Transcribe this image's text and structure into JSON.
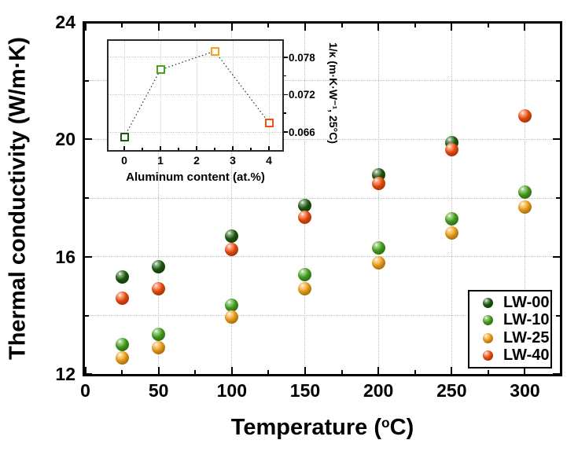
{
  "figure": {
    "y_axis_title": "Thermal conductivity (W/m·K)",
    "x_axis_title": {
      "prefix": "Temperature (",
      "superscript": "o",
      "suffix": "C)"
    }
  },
  "legend": {
    "position": "lower right",
    "items": [
      {
        "label": "LW-00",
        "color": "#1c5b0f"
      },
      {
        "label": "LW-10",
        "color": "#48a41f"
      },
      {
        "label": "LW-25",
        "color": "#f5a31b"
      },
      {
        "label": "LW-40",
        "color": "#f3500e"
      }
    ]
  },
  "chart_data": [
    {
      "type": "scatter",
      "title": "",
      "xlabel": "Temperature (°C)",
      "ylabel": "Thermal conductivity (W/m·K)",
      "xlim": [
        0,
        325
      ],
      "ylim": [
        12,
        24
      ],
      "xticks": [
        0,
        50,
        100,
        150,
        200,
        250,
        300
      ],
      "xticks_minor": [
        25,
        75,
        125,
        175,
        225,
        275,
        325
      ],
      "yticks": [
        12,
        16,
        20,
        24
      ],
      "yticks_minor": [
        14,
        18,
        22
      ],
      "xgrid": [
        50,
        100,
        150,
        200,
        250,
        300
      ],
      "ygrid": [
        14,
        16,
        18,
        20,
        22
      ],
      "grid": true,
      "marker": "glossy-sphere",
      "series": [
        {
          "name": "LW-00",
          "color": "#1c5b0f",
          "x": [
            25,
            50,
            100,
            150,
            200,
            250
          ],
          "y": [
            15.3,
            15.65,
            16.7,
            17.75,
            18.8,
            19.9
          ]
        },
        {
          "name": "LW-10",
          "color": "#48a41f",
          "x": [
            25,
            50,
            100,
            150,
            200,
            250,
            300
          ],
          "y": [
            13.0,
            13.35,
            14.35,
            15.4,
            16.3,
            17.3,
            18.2
          ]
        },
        {
          "name": "LW-25",
          "color": "#f5a31b",
          "x": [
            25,
            50,
            100,
            150,
            200,
            250,
            300
          ],
          "y": [
            12.55,
            12.9,
            13.95,
            14.9,
            15.8,
            16.8,
            17.7
          ]
        },
        {
          "name": "LW-40",
          "color": "#f3500e",
          "x": [
            25,
            50,
            100,
            150,
            200,
            250,
            300
          ],
          "y": [
            14.6,
            14.9,
            16.25,
            17.35,
            18.5,
            19.65,
            20.8
          ]
        }
      ]
    },
    {
      "type": "line",
      "role": "inset",
      "xlabel": "Aluminum content (at.%)",
      "ylabel": "1/κ (m·K·W⁻¹, 25°C)",
      "xlim": [
        -0.5,
        4.4
      ],
      "ylim": [
        0.063,
        0.081
      ],
      "xticks": [
        0,
        1,
        2,
        3,
        4
      ],
      "xticks_minor": [
        0.5,
        1.5,
        2.5,
        3.5
      ],
      "yticks": [
        0.066,
        0.072,
        0.078
      ],
      "yticks_minor": [
        0.069,
        0.075
      ],
      "line_style": "dotted",
      "marker": "open-square",
      "points": [
        {
          "x": 0,
          "y": 0.0652,
          "color": "#1c5b0f"
        },
        {
          "x": 1,
          "y": 0.076,
          "color": "#48a41f"
        },
        {
          "x": 2.5,
          "y": 0.079,
          "color": "#f5a31b"
        },
        {
          "x": 4,
          "y": 0.0675,
          "color": "#f3500e"
        }
      ]
    }
  ]
}
